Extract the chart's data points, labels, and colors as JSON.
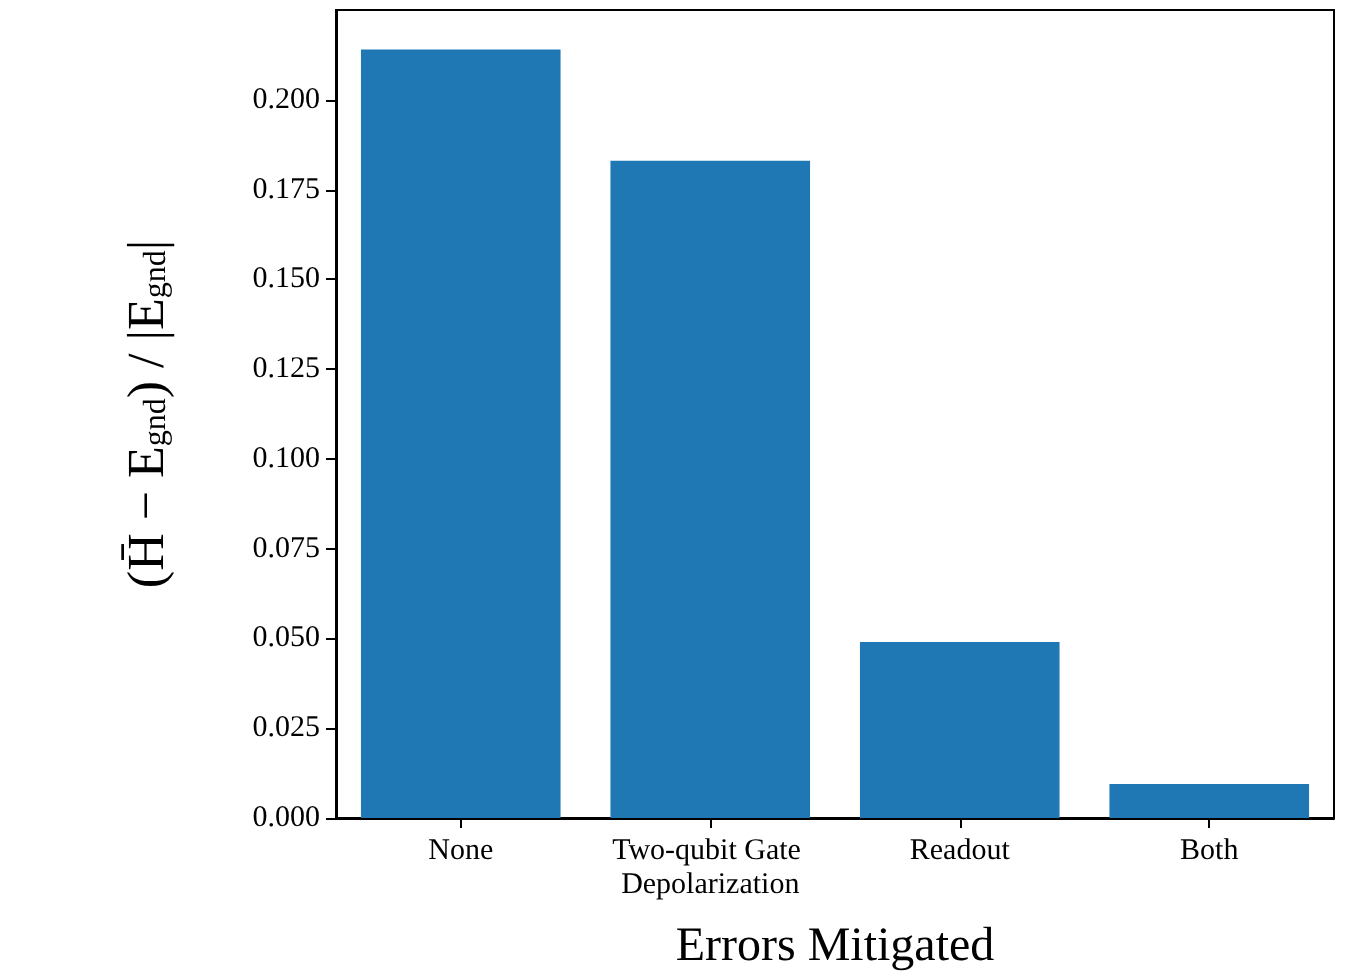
{
  "chart_data": {
    "type": "bar",
    "xlabel": "Errors Mitigated",
    "ylabel": "(H̄ − E$_{gnd}$) / |E$_{gnd}$|",
    "categories": [
      "None",
      "Two-qubit Gate Depolarization",
      "Readout",
      "Both"
    ],
    "values": [
      0.214,
      0.183,
      0.049,
      0.0095
    ],
    "color": "#1f77b4",
    "ylim": [
      0,
      0.225
    ],
    "yticks": [
      {
        "value": 0,
        "label": "0.000"
      },
      {
        "value": 0.025,
        "label": "0.025"
      },
      {
        "value": 0.05,
        "label": "0.050"
      },
      {
        "value": 0.075,
        "label": "0.075"
      },
      {
        "value": 0.1,
        "label": "0.100"
      },
      {
        "value": 0.125,
        "label": "0.125"
      },
      {
        "value": 0.15,
        "label": "0.150"
      },
      {
        "value": 0.175,
        "label": "0.175"
      },
      {
        "value": 0.2,
        "label": "0.200"
      }
    ],
    "grid": false
  }
}
